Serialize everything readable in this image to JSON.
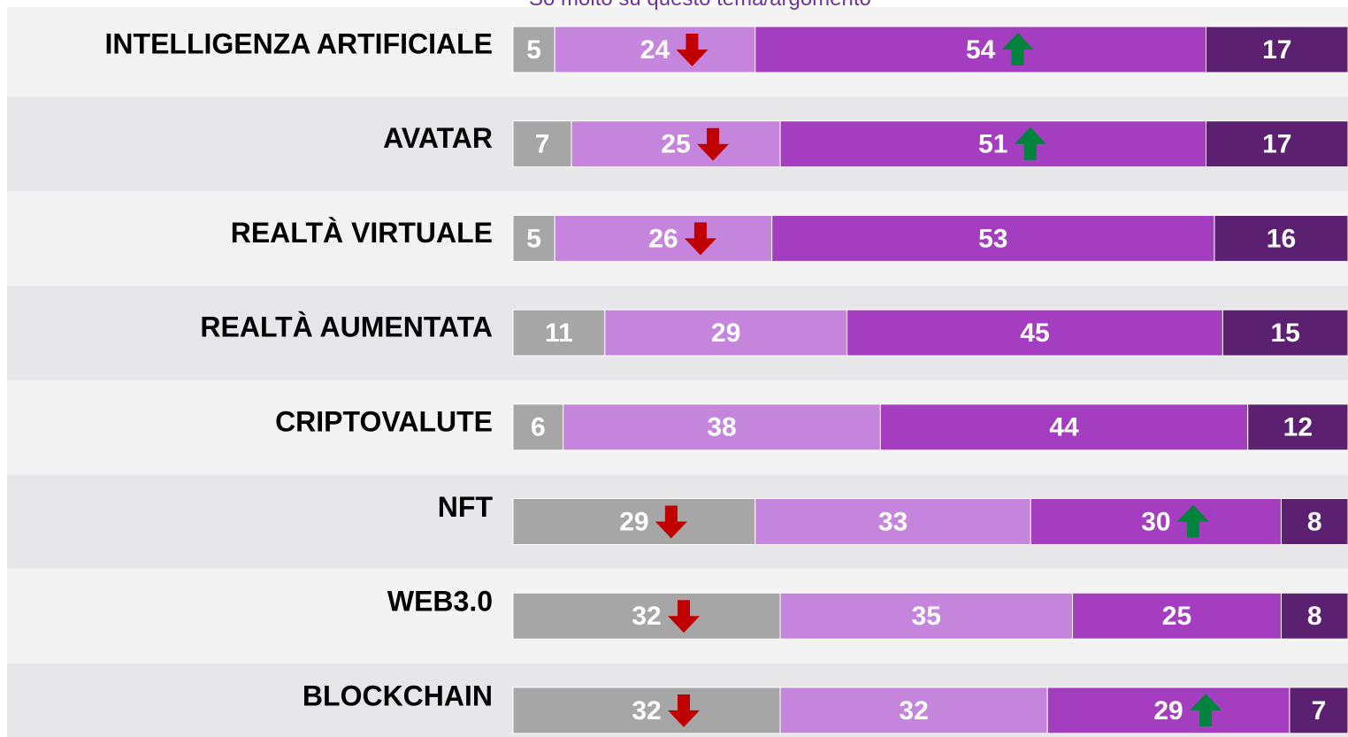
{
  "chart_data": {
    "type": "stacked-bar-horizontal",
    "annotation": "So molto su questo tema/argomento",
    "categories": [
      "INTELLIGENZA ARTIFICIALE",
      "AVATAR",
      "REALTÀ VIRTUALE",
      "REALTÀ AUMENTATA",
      "CRIPTOVALUTE",
      "NFT",
      "WEB3.0",
      "BLOCKCHAIN"
    ],
    "xlim": [
      0,
      100
    ],
    "series": [
      {
        "color": "#a6a6a6",
        "values": [
          5,
          7,
          5,
          11,
          6,
          29,
          32,
          32
        ],
        "trend": [
          null,
          null,
          null,
          null,
          null,
          "down",
          "down",
          "down"
        ]
      },
      {
        "color": "#c585dc",
        "values": [
          24,
          25,
          26,
          29,
          38,
          33,
          35,
          32
        ],
        "trend": [
          "down",
          "down",
          "down",
          null,
          null,
          null,
          null,
          null
        ]
      },
      {
        "color": "#a53dc1",
        "values": [
          54,
          51,
          53,
          45,
          44,
          30,
          25,
          29
        ],
        "trend": [
          "up",
          "up",
          null,
          null,
          null,
          "up",
          null,
          "up"
        ]
      },
      {
        "color": "#5c2070",
        "values": [
          17,
          17,
          16,
          15,
          12,
          8,
          8,
          7
        ],
        "trend": [
          null,
          null,
          null,
          null,
          null,
          null,
          null,
          null
        ]
      }
    ]
  }
}
